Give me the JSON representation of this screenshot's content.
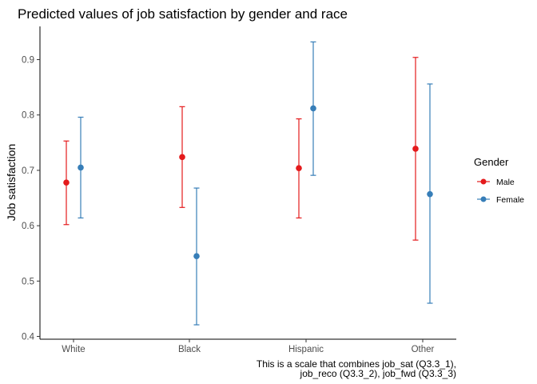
{
  "chart_data": {
    "type": "scatter",
    "title": "Predicted values of job satisfaction by gender and race",
    "xlabel": "",
    "ylabel": "Job satisfaction",
    "categories": [
      "White",
      "Black",
      "Hispanic",
      "Other"
    ],
    "ylim": [
      0.395,
      0.96
    ],
    "yticks": [
      0.4,
      0.5,
      0.6,
      0.7,
      0.8,
      0.9
    ],
    "ytick_labels": [
      "0.4",
      "0.5",
      "0.6",
      "0.7",
      "0.8",
      "0.9"
    ],
    "grid": false,
    "error_bars": true,
    "legend": {
      "title": "Gender",
      "position": "right"
    },
    "series": [
      {
        "name": "Male",
        "color": "#e41a1c",
        "values": [
          0.678,
          0.724,
          0.704,
          0.739
        ],
        "lower": [
          0.602,
          0.633,
          0.614,
          0.574
        ],
        "upper": [
          0.753,
          0.815,
          0.793,
          0.904
        ]
      },
      {
        "name": "Female",
        "color": "#377eb8",
        "values": [
          0.705,
          0.545,
          0.812,
          0.657
        ],
        "lower": [
          0.614,
          0.421,
          0.691,
          0.46
        ],
        "upper": [
          0.796,
          0.668,
          0.932,
          0.856
        ]
      }
    ],
    "caption": [
      "This is a scale that combines job_sat (Q3.3_1),",
      "job_reco (Q3.3_2), job_fwd (Q3.3_3)"
    ]
  }
}
